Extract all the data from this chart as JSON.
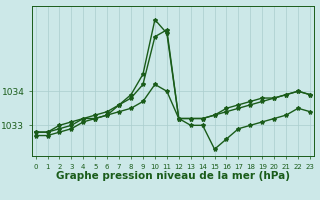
{
  "hours": [
    0,
    1,
    2,
    3,
    4,
    5,
    6,
    7,
    8,
    9,
    10,
    11,
    12,
    13,
    14,
    15,
    16,
    17,
    18,
    19,
    20,
    21,
    22,
    23
  ],
  "line1": [
    1032.8,
    1032.8,
    1032.9,
    1033.0,
    1033.2,
    1033.3,
    1033.4,
    1033.6,
    1033.8,
    1034.2,
    1035.6,
    1035.8,
    1033.2,
    1033.2,
    1033.2,
    1033.3,
    1033.5,
    1033.6,
    1033.7,
    1033.8,
    1033.8,
    1033.9,
    1034.0,
    1033.9
  ],
  "line2": [
    1032.8,
    1032.8,
    1033.0,
    1033.1,
    1033.2,
    1033.2,
    1033.3,
    1033.4,
    1033.5,
    1033.7,
    1034.2,
    1034.0,
    1033.2,
    1033.2,
    1033.2,
    1033.3,
    1033.4,
    1033.5,
    1033.6,
    1033.7,
    1033.8,
    1033.9,
    1034.0,
    1033.9
  ],
  "line3": [
    1032.7,
    1032.7,
    1032.8,
    1032.9,
    1033.1,
    1033.2,
    1033.3,
    1033.6,
    1033.9,
    1034.5,
    1036.1,
    1035.7,
    1033.2,
    1033.0,
    1033.0,
    1032.3,
    1032.6,
    1032.9,
    1033.0,
    1033.1,
    1033.2,
    1033.3,
    1033.5,
    1033.4
  ],
  "bg_color": "#cce8e8",
  "line_color": "#1a5c1a",
  "grid_color": "#aacece",
  "ylabel_values": [
    1033,
    1034
  ],
  "ylim": [
    1032.1,
    1036.5
  ],
  "xlim": [
    -0.3,
    23.3
  ],
  "xlabel": "Graphe pression niveau de la mer (hPa)",
  "xlabel_fontsize": 7.5,
  "ytick_fontsize": 6.5,
  "xtick_fontsize": 5.0,
  "linewidth": 1.0,
  "markersize": 3.0
}
